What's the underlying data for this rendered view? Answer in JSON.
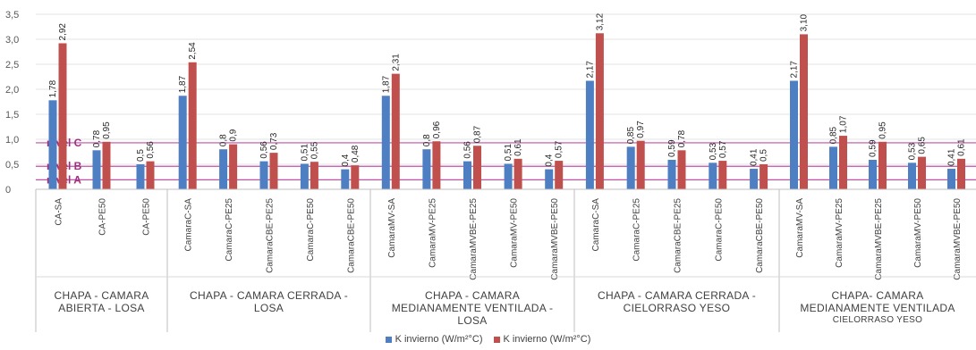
{
  "chart_data": {
    "type": "bar",
    "ylim": [
      0,
      3.5
    ],
    "yticks": [
      "0",
      "0,5",
      "1,0",
      "1,5",
      "2,0",
      "2,5",
      "3,0",
      "3,5"
    ],
    "grid": true,
    "legend_position": "bottom",
    "groups": [
      {
        "lines": [
          "CHAPA - CAMARA",
          "ABIERTA - LOSA"
        ],
        "small": [],
        "categories": [
          "CA-SA",
          "CA-PE50",
          "CA-PE50"
        ]
      },
      {
        "lines": [
          "CHAPA - CAMARA CERRADA -",
          "LOSA"
        ],
        "small": [],
        "categories": [
          "CamaraC-SA",
          "CamaraC-PE25",
          "CamaraCBE-PE25",
          "CamaraC-PE50",
          "CamaraCBE-PE50"
        ]
      },
      {
        "lines": [
          "CHAPA - CAMARA",
          "MEDIANAMENTE VENTILADA -",
          "LOSA"
        ],
        "small": [],
        "categories": [
          "CamaraMV-SA",
          "CamaraMV-PE25",
          "CamaraMVBE-PE25",
          "CamaraMV-PE50",
          "CamaraMVBE-PE50"
        ]
      },
      {
        "lines": [
          "CHAPA -  CAMARA CERRADA -",
          "CIELORRASO YESO"
        ],
        "small": [],
        "categories": [
          "CamaraC-SA",
          "CamaraC-PE25",
          "CamaraCBE-PE25",
          "CamaraC-PE50",
          "CamaraCBE-PE50"
        ]
      },
      {
        "lines": [
          "CHAPA- CAMARA",
          "MEDIANAMENTE VENTILADA"
        ],
        "small": [
          "CIELORRASO YESO"
        ],
        "categories": [
          "CamaraMV-SA",
          "CamaraMV-PE25",
          "CamaraMVBE-PE25",
          "CamaraMV-PE50",
          "CamaraMVBE-PE50"
        ]
      }
    ],
    "series": [
      {
        "name": "K invierno (W/m²°C)",
        "color": "#4f7fc3",
        "values": [
          1.78,
          0.78,
          0.5,
          1.87,
          0.8,
          0.56,
          0.51,
          0.4,
          1.87,
          0.8,
          0.56,
          0.51,
          0.4,
          2.17,
          0.85,
          0.59,
          0.53,
          0.41,
          2.17,
          0.85,
          0.59,
          0.53,
          0.41
        ],
        "labels": [
          "1,78",
          "0,78",
          "0,5",
          "1,87",
          "0,8",
          "0,56",
          "0,51",
          "0,4",
          "1,87",
          "0,8",
          "0,56",
          "0,51",
          "0,4",
          "2,17",
          "0,85",
          "0,59",
          "0,53",
          "0,41",
          "2,17",
          "0,85",
          "0,59",
          "0,53",
          "0,41"
        ]
      },
      {
        "name": "K invierno (W/m²°C)",
        "color": "#c0504d",
        "values": [
          2.92,
          0.95,
          0.56,
          2.54,
          0.9,
          0.73,
          0.55,
          0.48,
          2.31,
          0.96,
          0.87,
          0.61,
          0.57,
          3.12,
          0.97,
          0.78,
          0.57,
          0.5,
          3.1,
          1.07,
          0.95,
          0.65,
          0.61
        ],
        "labels": [
          "2,92",
          "0,95",
          "0,56",
          "2,54",
          "0,9",
          "0,73",
          "0,55",
          "0,48",
          "2,31",
          "0,96",
          "0,87",
          "0,61",
          "0,57",
          "3,12",
          "0,97",
          "0,78",
          "0,57",
          "0,5",
          "3,10",
          "1,07",
          "0,95",
          "0,65",
          "0,61"
        ]
      }
    ],
    "reference_lines": [
      {
        "label": "nivel C",
        "value": 0.93,
        "color": "#c04fa6"
      },
      {
        "label": "nivel B",
        "value": 0.46,
        "color": "#c04fa6"
      },
      {
        "label": "nivel A",
        "value": 0.19,
        "color": "#c04fa6"
      }
    ]
  }
}
